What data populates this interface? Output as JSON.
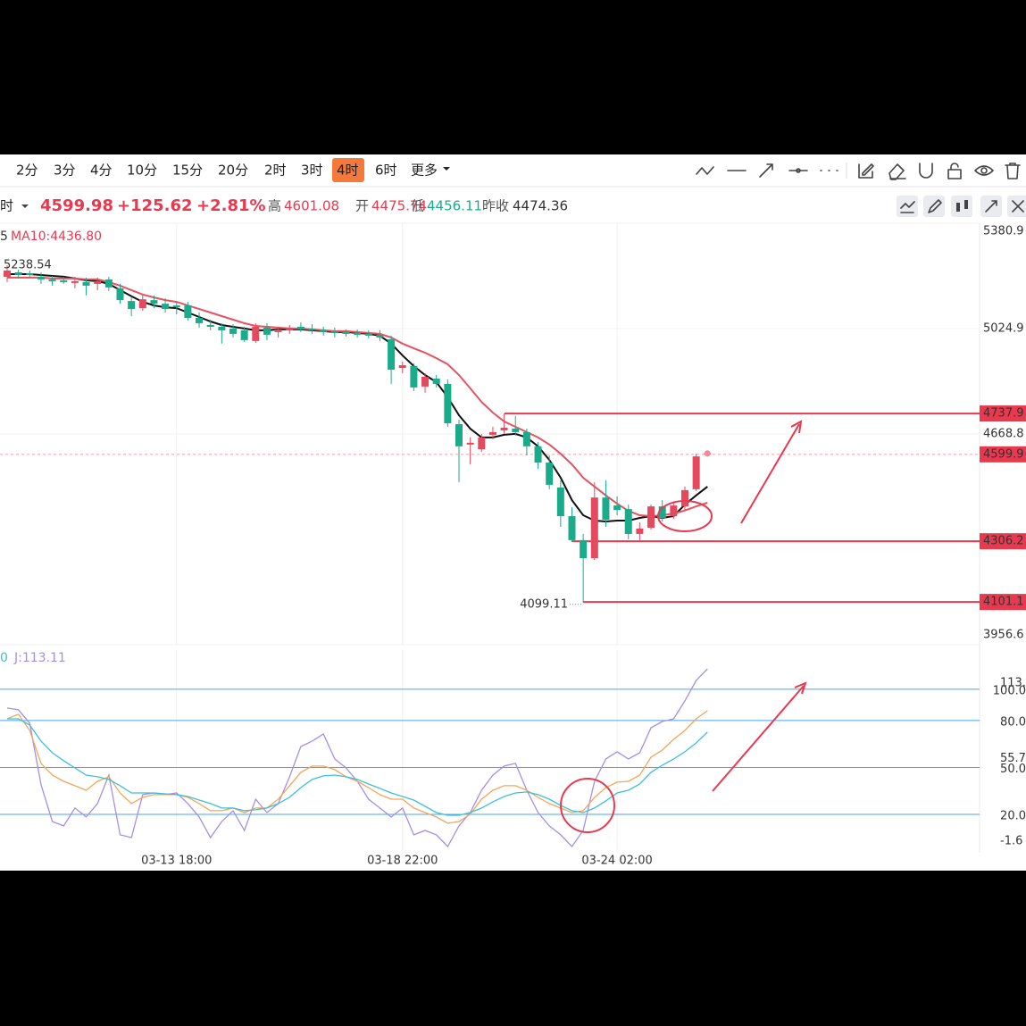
{
  "toolbar": {
    "intervals": [
      "2分",
      "3分",
      "4分",
      "10分",
      "15分",
      "20分",
      "2时",
      "3时",
      "4时",
      "6时",
      "更多"
    ],
    "active": "4时"
  },
  "quote": {
    "period": "时",
    "price": "4599.98",
    "change": "+125.62",
    "change_pct": "+2.81%",
    "stats": [
      {
        "label": "高",
        "value": "4601.08"
      },
      {
        "label": "开",
        "value": "4475.74"
      },
      {
        "label": "低",
        "value": "4456.11"
      },
      {
        "label": "昨收",
        "value": "4474.36"
      }
    ]
  },
  "chart_data": [
    {
      "type": "candlestick",
      "legend": [
        "5",
        "MA10:4436.80"
      ],
      "categories": [
        null,
        null,
        null,
        null,
        null,
        null,
        null,
        null,
        null,
        null,
        null,
        null,
        null,
        null,
        null,
        "03-13 18:00",
        null,
        null,
        null,
        null,
        null,
        null,
        null,
        null,
        null,
        null,
        null,
        null,
        null,
        null,
        null,
        null,
        null,
        null,
        null,
        "03-18 22:00",
        null,
        null,
        null,
        null,
        null,
        null,
        null,
        null,
        null,
        null,
        null,
        null,
        null,
        null,
        null,
        null,
        null,
        null,
        "03-24 02:00",
        null,
        null,
        null,
        null,
        null,
        null,
        null,
        null
      ],
      "open": [
        5200,
        5215,
        5212,
        5200,
        5191,
        5188,
        5179,
        5182,
        5176,
        5191,
        5161,
        5118,
        5094,
        5121,
        5109,
        5103,
        5103,
        5061,
        5037,
        5031,
        5025,
        5019,
        4983,
        5028,
        5013,
        5019,
        5031,
        5025,
        5019,
        5016,
        5013,
        5010,
        5007,
        5004,
        4989,
        4892,
        4898,
        4829,
        4856,
        4838,
        4702,
        4633,
        4617,
        4666,
        4681,
        4687,
        4675,
        4627,
        4572,
        4488,
        4391,
        4310,
        4249,
        4454,
        4427,
        4415,
        4331,
        4352,
        4424,
        4391,
        4424,
        4482,
        4599
      ],
      "high": [
        5238.54,
        5224,
        5221,
        5215,
        5203,
        5200,
        5200,
        5197,
        5197,
        5200,
        5176,
        5133,
        5140,
        5137,
        5127,
        5115,
        5115,
        5079,
        5055,
        5043,
        5040,
        5031,
        5043,
        5043,
        5031,
        5037,
        5046,
        5040,
        5031,
        5028,
        5022,
        5022,
        5019,
        5019,
        5001,
        4913,
        4907,
        4874,
        4868,
        4853,
        4717,
        4657,
        4669,
        4693,
        4737.9,
        4730,
        4687,
        4642,
        4596,
        4512,
        4421,
        4331,
        4506,
        4512,
        4458,
        4430,
        4370,
        4430,
        4445,
        4439,
        4491,
        4602,
        4605
      ],
      "low": [
        5182,
        5194,
        5197,
        5176,
        5170,
        5176,
        5161,
        5137,
        5155,
        5152,
        5109,
        5067,
        5085,
        5094,
        5079,
        5073,
        5052,
        5028,
        5019,
        4974,
        4995,
        4980,
        4977,
        4986,
        4995,
        5007,
        5013,
        5007,
        5001,
        4995,
        4998,
        4995,
        4992,
        4983,
        4838,
        4874,
        4814,
        4808,
        4826,
        4693,
        4506,
        4566,
        4608,
        4651,
        4669,
        4663,
        4596,
        4551,
        4482,
        4355,
        4304,
        4099.11,
        4243,
        4355,
        4394,
        4313,
        4310,
        4346,
        4373,
        4382,
        4412,
        4476,
        4596
      ],
      "close": [
        5221,
        5206,
        5206,
        5191,
        5185,
        5182,
        5185,
        5170,
        5185,
        5164,
        5121,
        5091,
        5124,
        5109,
        5091,
        5097,
        5061,
        5043,
        5031,
        5019,
        5007,
        4986,
        5031,
        5004,
        5022,
        5028,
        5022,
        5019,
        5013,
        5010,
        5007,
        5004,
        5001,
        4995,
        4886,
        4901,
        4826,
        4862,
        4838,
        4705,
        4627,
        4639,
        4657,
        4675,
        4690,
        4675,
        4627,
        4572,
        4497,
        4391,
        4310,
        4249,
        4454,
        4379,
        4412,
        4331,
        4349,
        4424,
        4385,
        4427,
        4479,
        4593,
        4603
      ],
      "series": [
        {
          "color": "#111111",
          "values": [
            5209,
            5209,
            5209,
            5206,
            5203,
            5200,
            5194,
            5188,
            5185,
            5176,
            5155,
            5134,
            5115,
            5103,
            5097,
            5094,
            5079,
            5064,
            5049,
            5037,
            5031,
            5025,
            5019,
            5019,
            5022,
            5022,
            5022,
            5019,
            5016,
            5013,
            5013,
            5010,
            5007,
            5001,
            4974,
            4934,
            4898,
            4868,
            4844,
            4793,
            4732,
            4687,
            4657,
            4657,
            4666,
            4669,
            4657,
            4627,
            4581,
            4521,
            4445,
            4394,
            4376,
            4373,
            4376,
            4376,
            4385,
            4391,
            4385,
            4391,
            4430,
            4461,
            4491
          ]
        },
        {
          "color": "#e8525f",
          "values": [
            5197,
            5197,
            5197,
            5197,
            5194,
            5194,
            5194,
            5191,
            5191,
            5182,
            5170,
            5155,
            5140,
            5130,
            5121,
            5115,
            5103,
            5091,
            5079,
            5067,
            5055,
            5043,
            5034,
            5031,
            5028,
            5025,
            5025,
            5022,
            5019,
            5016,
            5016,
            5013,
            5010,
            5007,
            4995,
            4974,
            4958,
            4943,
            4925,
            4904,
            4868,
            4823,
            4777,
            4741,
            4711,
            4693,
            4675,
            4657,
            4633,
            4602,
            4566,
            4521,
            4491,
            4461,
            4433,
            4409,
            4394,
            4391,
            4394,
            4400,
            4410,
            4424,
            4436.8
          ]
        }
      ],
      "up_color": "#e5495e",
      "down_color": "#1aab8a",
      "ylim": [
        3956.6,
        5380.9
      ],
      "yticks": [
        5380.9,
        5024.9,
        4668.8,
        3956.6
      ],
      "grid": true,
      "levels": [
        4737.9,
        4306.2,
        4101.1
      ],
      "level_color": "#e8394f",
      "current": 4599.9,
      "max_label": 5238.54,
      "min_label": 4099.11
    },
    {
      "type": "line",
      "legend": [
        "0",
        "J:113.11"
      ],
      "ylim": [
        -4.6,
        125.1
      ],
      "yticks": [
        {
          "value": 100,
          "label": "100.0"
        },
        {
          "value": 80,
          "label": "80.0"
        },
        {
          "value": 50,
          "label": "50.0"
        },
        {
          "value": 20,
          "label": "20.0"
        }
      ],
      "tick_color": "#4aa5e8",
      "axis_labels": [
        113.1,
        55.7,
        -1.6
      ],
      "series": [
        {
          "color": "#a58fe6",
          "values": [
            88.0,
            86.9,
            78.3,
            38.9,
            15.4,
            12.6,
            24.0,
            18.3,
            26.9,
            45.1,
            6.9,
            5.1,
            32.6,
            33.7,
            32.6,
            33.7,
            26.9,
            18.3,
            5.1,
            15.4,
            22.3,
            9.7,
            29.7,
            21.1,
            26.9,
            44.0,
            63.4,
            66.9,
            71.4,
            55.4,
            49.7,
            41.1,
            29.7,
            24.0,
            18.3,
            24.0,
            6.9,
            9.7,
            6.9,
            -0.6,
            12.6,
            21.1,
            35.4,
            45.1,
            50.9,
            52.6,
            35.4,
            21.1,
            12.6,
            6.9,
            -0.6,
            9.7,
            41.1,
            55.4,
            60.0,
            55.4,
            59.4,
            75.4,
            79.4,
            81.1,
            92.6,
            105.7,
            113.11
          ]
        },
        {
          "color": "#f5a55a",
          "values": [
            81.1,
            84.0,
            73.7,
            52.6,
            45.1,
            41.1,
            38.3,
            35.4,
            41.1,
            44.0,
            33.7,
            26.9,
            30.9,
            32.6,
            32.6,
            32.6,
            30.9,
            26.9,
            22.3,
            22.3,
            24.0,
            21.1,
            24.0,
            24.0,
            29.7,
            38.3,
            46.9,
            50.9,
            50.9,
            48.6,
            44.0,
            41.1,
            37.1,
            32.6,
            29.7,
            29.7,
            24.0,
            21.1,
            18.3,
            14.3,
            15.4,
            20.0,
            29.7,
            35.4,
            38.3,
            38.3,
            35.4,
            30.9,
            26.9,
            24.0,
            21.1,
            22.3,
            30.9,
            37.1,
            40.6,
            41.1,
            45.1,
            56.6,
            61.1,
            68.0,
            73.7,
            81.1,
            86.3
          ]
        },
        {
          "color": "#3cc0d8",
          "values": [
            81.1,
            81.1,
            77.1,
            66.9,
            59.4,
            54.3,
            49.7,
            45.1,
            44.0,
            42.3,
            38.3,
            33.7,
            33.7,
            33.7,
            33.1,
            32.6,
            31.4,
            29.1,
            26.9,
            24.0,
            24.0,
            22.3,
            22.9,
            24.0,
            26.9,
            30.9,
            37.1,
            42.3,
            44.6,
            45.1,
            44.0,
            42.3,
            39.4,
            36.6,
            33.7,
            31.4,
            29.1,
            25.1,
            21.1,
            19.4,
            19.4,
            21.1,
            24.0,
            28.0,
            31.4,
            33.7,
            34.3,
            32.6,
            29.7,
            25.7,
            22.3,
            21.1,
            24.0,
            28.6,
            33.7,
            35.4,
            39.4,
            46.9,
            51.4,
            55.4,
            60.0,
            65.7,
            72.6
          ]
        }
      ]
    }
  ]
}
